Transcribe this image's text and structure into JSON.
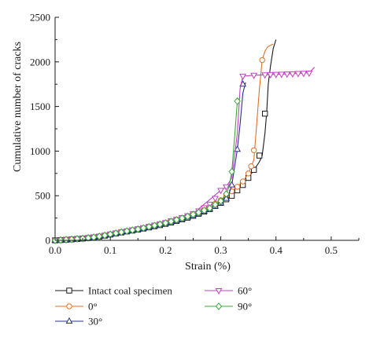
{
  "chart_data": {
    "type": "line",
    "title": "",
    "xlabel": "Strain (%)",
    "ylabel": "Cumulative number of cracks",
    "xlim": [
      0,
      0.55
    ],
    "ylim": [
      0,
      2500
    ],
    "xticks": [
      "0.0",
      "0.1",
      "0.2",
      "0.3",
      "0.4",
      "0.5"
    ],
    "yticks": [
      "0",
      "500",
      "1000",
      "1500",
      "2000",
      "2500"
    ],
    "grid": false,
    "legend_position": "bottom",
    "series": [
      {
        "name": "Intact coal specimen",
        "color": "#1a1a1a",
        "marker": "square",
        "x": [
          0,
          0.05,
          0.1,
          0.15,
          0.2,
          0.25,
          0.3,
          0.33,
          0.35,
          0.36,
          0.37,
          0.375,
          0.38,
          0.383,
          0.386,
          0.39,
          0.395,
          0.4
        ],
        "y": [
          0,
          20,
          65,
          120,
          185,
          275,
          420,
          560,
          700,
          790,
          880,
          950,
          1200,
          1420,
          1750,
          1950,
          2150,
          2250
        ],
        "marker_x": [
          0,
          0.01,
          0.02,
          0.03,
          0.04,
          0.05,
          0.06,
          0.07,
          0.08,
          0.09,
          0.1,
          0.11,
          0.12,
          0.13,
          0.14,
          0.15,
          0.16,
          0.17,
          0.18,
          0.19,
          0.2,
          0.21,
          0.22,
          0.23,
          0.24,
          0.25,
          0.26,
          0.27,
          0.28,
          0.29,
          0.3,
          0.31,
          0.32,
          0.33,
          0.34,
          0.35,
          0.36,
          0.37,
          0.38
        ],
        "marker_y": [
          0,
          3,
          6,
          10,
          15,
          20,
          26,
          33,
          41,
          52,
          65,
          77,
          88,
          100,
          110,
          120,
          132,
          145,
          158,
          171,
          185,
          200,
          218,
          236,
          254,
          275,
          298,
          322,
          350,
          385,
          420,
          460,
          500,
          560,
          620,
          700,
          790,
          950,
          1420
        ]
      },
      {
        "name": "0°",
        "color": "#e0702a",
        "marker": "circle",
        "x": [
          0,
          0.05,
          0.1,
          0.15,
          0.2,
          0.25,
          0.3,
          0.32,
          0.34,
          0.35,
          0.355,
          0.36,
          0.365,
          0.37,
          0.375,
          0.38,
          0.385,
          0.395
        ],
        "y": [
          0,
          22,
          68,
          125,
          195,
          290,
          450,
          550,
          660,
          750,
          830,
          900,
          1300,
          1700,
          2020,
          2120,
          2170,
          2200
        ],
        "marker_x": [
          0,
          0.01,
          0.02,
          0.03,
          0.04,
          0.05,
          0.06,
          0.07,
          0.08,
          0.09,
          0.1,
          0.11,
          0.12,
          0.13,
          0.14,
          0.15,
          0.16,
          0.17,
          0.18,
          0.19,
          0.2,
          0.21,
          0.22,
          0.23,
          0.24,
          0.25,
          0.26,
          0.27,
          0.28,
          0.29,
          0.3,
          0.31,
          0.32,
          0.33,
          0.34,
          0.35,
          0.355,
          0.36,
          0.375
        ],
        "marker_y": [
          0,
          3,
          7,
          11,
          16,
          22,
          28,
          35,
          44,
          55,
          68,
          80,
          92,
          104,
          115,
          125,
          138,
          152,
          166,
          180,
          195,
          212,
          230,
          248,
          268,
          290,
          315,
          345,
          375,
          410,
          450,
          500,
          550,
          600,
          660,
          750,
          830,
          1010,
          2020
        ]
      },
      {
        "name": "30°",
        "color": "#2b2f8f",
        "marker": "triangle-up",
        "x": [
          0,
          0.05,
          0.1,
          0.15,
          0.2,
          0.25,
          0.28,
          0.3,
          0.31,
          0.315,
          0.32,
          0.325,
          0.33,
          0.335,
          0.34,
          0.345
        ],
        "y": [
          0,
          20,
          65,
          120,
          190,
          280,
          350,
          420,
          470,
          520,
          620,
          820,
          1020,
          1300,
          1650,
          1770
        ],
        "marker_x": [
          0,
          0.01,
          0.02,
          0.03,
          0.04,
          0.05,
          0.06,
          0.07,
          0.08,
          0.09,
          0.1,
          0.11,
          0.12,
          0.13,
          0.14,
          0.15,
          0.16,
          0.17,
          0.18,
          0.19,
          0.2,
          0.21,
          0.22,
          0.23,
          0.24,
          0.25,
          0.26,
          0.27,
          0.28,
          0.29,
          0.3,
          0.31,
          0.32,
          0.33,
          0.34
        ],
        "marker_y": [
          0,
          3,
          6,
          10,
          15,
          20,
          26,
          33,
          42,
          53,
          65,
          77,
          89,
          101,
          111,
          120,
          133,
          147,
          161,
          175,
          190,
          206,
          222,
          240,
          260,
          280,
          302,
          326,
          350,
          384,
          420,
          470,
          620,
          1020,
          1750
        ]
      },
      {
        "name": "60°",
        "color": "#c040c0",
        "marker": "triangle-down",
        "x": [
          0,
          0.05,
          0.1,
          0.15,
          0.2,
          0.25,
          0.3,
          0.31,
          0.32,
          0.33,
          0.335,
          0.34,
          0.36,
          0.38,
          0.4,
          0.42,
          0.44,
          0.46,
          0.47
        ],
        "y": [
          0,
          22,
          70,
          130,
          200,
          300,
          560,
          600,
          700,
          1200,
          1700,
          1840,
          1850,
          1855,
          1860,
          1865,
          1870,
          1880,
          1940
        ],
        "marker_x": [
          0,
          0.01,
          0.02,
          0.03,
          0.04,
          0.05,
          0.06,
          0.07,
          0.08,
          0.09,
          0.1,
          0.11,
          0.12,
          0.13,
          0.14,
          0.15,
          0.16,
          0.17,
          0.18,
          0.19,
          0.2,
          0.21,
          0.22,
          0.23,
          0.24,
          0.25,
          0.26,
          0.27,
          0.28,
          0.29,
          0.3,
          0.31,
          0.34,
          0.36,
          0.38,
          0.39,
          0.4,
          0.41,
          0.42,
          0.43,
          0.44,
          0.45,
          0.46
        ],
        "marker_y": [
          0,
          3,
          7,
          12,
          17,
          22,
          29,
          37,
          46,
          57,
          70,
          82,
          94,
          106,
          118,
          130,
          143,
          157,
          171,
          185,
          200,
          218,
          236,
          255,
          276,
          300,
          330,
          365,
          405,
          470,
          560,
          600,
          1840,
          1850,
          1855,
          1858,
          1860,
          1862,
          1865,
          1867,
          1870,
          1872,
          1875
        ]
      },
      {
        "name": "90°",
        "color": "#3aa83a",
        "marker": "diamond",
        "x": [
          0,
          0.05,
          0.1,
          0.15,
          0.2,
          0.25,
          0.28,
          0.3,
          0.31,
          0.315,
          0.32,
          0.325,
          0.33,
          0.335
        ],
        "y": [
          0,
          20,
          68,
          125,
          195,
          290,
          360,
          440,
          520,
          600,
          770,
          1150,
          1560,
          1600
        ],
        "marker_x": [
          0,
          0.01,
          0.02,
          0.03,
          0.04,
          0.05,
          0.06,
          0.07,
          0.08,
          0.09,
          0.1,
          0.11,
          0.12,
          0.13,
          0.14,
          0.15,
          0.16,
          0.17,
          0.18,
          0.19,
          0.2,
          0.21,
          0.22,
          0.23,
          0.24,
          0.25,
          0.26,
          0.27,
          0.28,
          0.29,
          0.3,
          0.31,
          0.32,
          0.33
        ],
        "marker_y": [
          0,
          3,
          7,
          11,
          16,
          20,
          27,
          35,
          44,
          55,
          68,
          80,
          92,
          104,
          115,
          125,
          138,
          152,
          166,
          180,
          195,
          212,
          230,
          248,
          268,
          290,
          312,
          336,
          360,
          400,
          440,
          520,
          770,
          1560
        ]
      }
    ]
  }
}
